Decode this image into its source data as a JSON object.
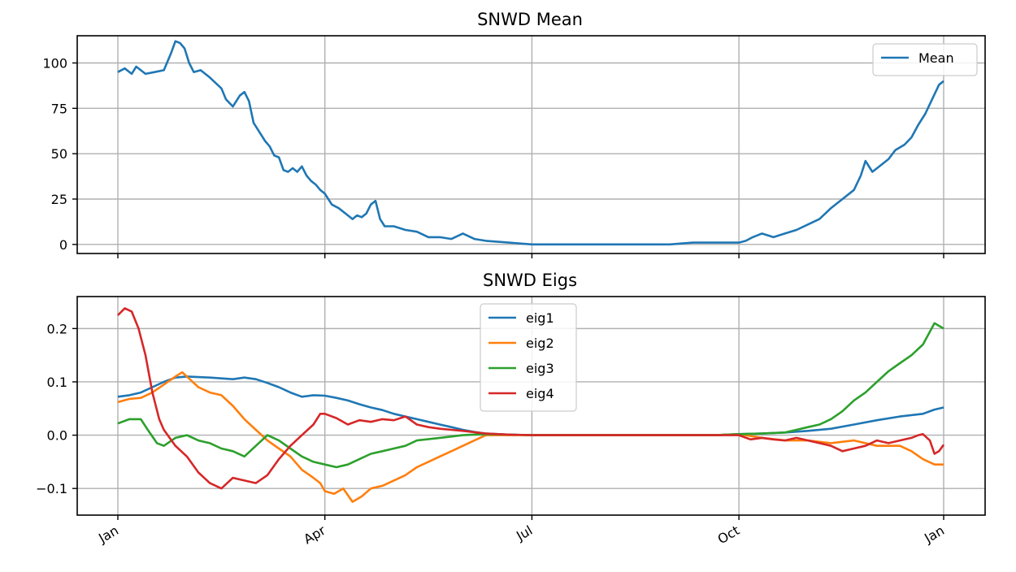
{
  "chart_data": [
    {
      "type": "line",
      "title": "SNWD Mean",
      "x_ticks": [
        "Jan",
        "Apr",
        "Jul",
        "Oct",
        "Jan"
      ],
      "x_tick_days": [
        0,
        90,
        180,
        270,
        359
      ],
      "xlim": [
        0,
        359
      ],
      "ylim": [
        -5,
        115
      ],
      "y_ticks": [
        0,
        25,
        50,
        75,
        100
      ],
      "y_tick_labels": [
        "0",
        "25",
        "50",
        "75",
        "100"
      ],
      "grid": true,
      "legend_position": "upper right",
      "series": [
        {
          "name": "Mean",
          "color": "#1f77b4",
          "x": [
            0,
            3,
            6,
            8,
            12,
            16,
            20,
            23,
            25,
            27,
            29,
            31,
            33,
            36,
            40,
            45,
            47,
            50,
            53,
            55,
            57,
            59,
            61,
            64,
            66,
            68,
            70,
            72,
            74,
            76,
            78,
            80,
            82,
            84,
            86,
            88,
            90,
            93,
            96,
            99,
            102,
            104,
            106,
            108,
            110,
            112,
            114,
            116,
            120,
            125,
            130,
            135,
            140,
            145,
            150,
            155,
            160,
            170,
            180,
            195,
            210,
            225,
            240,
            250,
            255,
            260,
            265,
            270,
            273,
            276,
            280,
            285,
            290,
            295,
            300,
            305,
            310,
            315,
            320,
            323,
            325,
            328,
            332,
            335,
            338,
            342,
            345,
            348,
            351,
            354,
            357,
            359
          ],
          "y": [
            95,
            97,
            94,
            98,
            94,
            95,
            96,
            105,
            112,
            111,
            108,
            100,
            95,
            96,
            92,
            86,
            80,
            76,
            82,
            84,
            79,
            67,
            63,
            57,
            54,
            49,
            48,
            41,
            40,
            42,
            40,
            43,
            38,
            35,
            33,
            30,
            28,
            22,
            20,
            17,
            14,
            16,
            15,
            17,
            22,
            24,
            14,
            10,
            10,
            8,
            7,
            4,
            4,
            3,
            6,
            3,
            2,
            1,
            0,
            0,
            0,
            0,
            0,
            1,
            1,
            1,
            1,
            1,
            2,
            4,
            6,
            4,
            6,
            8,
            11,
            14,
            20,
            25,
            30,
            38,
            46,
            40,
            44,
            47,
            52,
            55,
            59,
            66,
            72,
            80,
            88,
            90
          ]
        }
      ]
    },
    {
      "type": "line",
      "title": "SNWD Eigs",
      "x_ticks": [
        "Jan",
        "Apr",
        "Jul",
        "Oct",
        "Jan"
      ],
      "x_tick_days": [
        0,
        90,
        180,
        270,
        359
      ],
      "xlim": [
        0,
        359
      ],
      "ylim": [
        -0.15,
        0.26
      ],
      "y_ticks": [
        -0.1,
        0.0,
        0.1,
        0.2
      ],
      "y_tick_labels": [
        "−0.1",
        "0.0",
        "0.1",
        "0.2"
      ],
      "grid": true,
      "legend_position": "upper center",
      "series": [
        {
          "name": "eig1",
          "color": "#1f77b4",
          "x": [
            0,
            5,
            10,
            15,
            20,
            25,
            30,
            40,
            50,
            55,
            60,
            65,
            70,
            75,
            80,
            85,
            90,
            95,
            100,
            105,
            110,
            115,
            120,
            125,
            130,
            135,
            140,
            145,
            150,
            155,
            160,
            170,
            180,
            200,
            220,
            240,
            260,
            270,
            280,
            290,
            300,
            310,
            320,
            330,
            340,
            350,
            355,
            359
          ],
          "y": [
            0.072,
            0.075,
            0.08,
            0.09,
            0.1,
            0.108,
            0.11,
            0.108,
            0.105,
            0.108,
            0.105,
            0.098,
            0.09,
            0.08,
            0.072,
            0.075,
            0.074,
            0.07,
            0.065,
            0.058,
            0.052,
            0.047,
            0.04,
            0.035,
            0.03,
            0.025,
            0.02,
            0.015,
            0.01,
            0.006,
            0.003,
            0.001,
            0.0,
            0.0,
            0.0,
            0.0,
            0.0,
            0.002,
            0.003,
            0.005,
            0.008,
            0.012,
            0.02,
            0.028,
            0.035,
            0.04,
            0.048,
            0.052
          ]
        },
        {
          "name": "eig2",
          "color": "#ff7f0e",
          "x": [
            0,
            5,
            10,
            15,
            20,
            25,
            28,
            30,
            35,
            40,
            45,
            50,
            55,
            60,
            65,
            70,
            75,
            80,
            85,
            88,
            90,
            94,
            98,
            102,
            106,
            110,
            115,
            120,
            125,
            130,
            135,
            140,
            145,
            150,
            155,
            160,
            170,
            180,
            200,
            220,
            240,
            260,
            270,
            280,
            290,
            300,
            310,
            320,
            330,
            340,
            345,
            350,
            355,
            359
          ],
          "y": [
            0.062,
            0.068,
            0.07,
            0.08,
            0.095,
            0.11,
            0.118,
            0.11,
            0.09,
            0.08,
            0.075,
            0.055,
            0.03,
            0.01,
            -0.01,
            -0.025,
            -0.04,
            -0.065,
            -0.08,
            -0.09,
            -0.105,
            -0.11,
            -0.1,
            -0.125,
            -0.115,
            -0.1,
            -0.095,
            -0.085,
            -0.075,
            -0.06,
            -0.05,
            -0.04,
            -0.03,
            -0.02,
            -0.01,
            0.0,
            0.0,
            0.0,
            0.0,
            0.0,
            0.0,
            0.0,
            0.002,
            -0.005,
            -0.01,
            -0.01,
            -0.015,
            -0.01,
            -0.02,
            -0.02,
            -0.03,
            -0.045,
            -0.055,
            -0.055
          ]
        },
        {
          "name": "eig3",
          "color": "#2ca02c",
          "x": [
            0,
            5,
            10,
            13,
            17,
            20,
            25,
            30,
            35,
            40,
            45,
            50,
            55,
            60,
            65,
            70,
            75,
            80,
            85,
            90,
            95,
            100,
            105,
            110,
            115,
            120,
            125,
            130,
            140,
            150,
            160,
            170,
            180,
            200,
            220,
            240,
            260,
            270,
            280,
            290,
            295,
            300,
            305,
            310,
            315,
            320,
            325,
            330,
            335,
            340,
            345,
            350,
            355,
            359
          ],
          "y": [
            0.022,
            0.03,
            0.03,
            0.01,
            -0.015,
            -0.02,
            -0.005,
            0.0,
            -0.01,
            -0.015,
            -0.025,
            -0.03,
            -0.04,
            -0.02,
            0.0,
            -0.01,
            -0.025,
            -0.04,
            -0.05,
            -0.055,
            -0.06,
            -0.055,
            -0.045,
            -0.035,
            -0.03,
            -0.025,
            -0.02,
            -0.01,
            -0.005,
            0.0,
            0.002,
            0.001,
            0.0,
            0.0,
            0.0,
            0.0,
            0.0,
            0.002,
            0.003,
            0.005,
            0.01,
            0.015,
            0.02,
            0.03,
            0.045,
            0.065,
            0.08,
            0.1,
            0.12,
            0.135,
            0.15,
            0.17,
            0.21,
            0.2
          ]
        },
        {
          "name": "eig4",
          "color": "#d62728",
          "x": [
            0,
            3,
            6,
            9,
            12,
            15,
            18,
            20,
            25,
            30,
            35,
            40,
            45,
            50,
            55,
            60,
            65,
            70,
            75,
            80,
            85,
            88,
            90,
            95,
            100,
            105,
            110,
            115,
            120,
            125,
            130,
            135,
            140,
            145,
            150,
            160,
            170,
            180,
            200,
            220,
            240,
            260,
            270,
            275,
            280,
            285,
            290,
            295,
            300,
            305,
            310,
            315,
            320,
            325,
            330,
            335,
            340,
            345,
            348,
            350,
            353,
            355,
            357,
            359
          ],
          "y": [
            0.225,
            0.238,
            0.232,
            0.2,
            0.15,
            0.08,
            0.03,
            0.01,
            -0.02,
            -0.04,
            -0.07,
            -0.09,
            -0.1,
            -0.08,
            -0.085,
            -0.09,
            -0.075,
            -0.045,
            -0.02,
            0.0,
            0.02,
            0.04,
            0.04,
            0.032,
            0.02,
            0.028,
            0.025,
            0.03,
            0.028,
            0.035,
            0.02,
            0.015,
            0.012,
            0.01,
            0.008,
            0.003,
            0.001,
            0.0,
            0.0,
            0.0,
            0.0,
            0.0,
            0.0,
            -0.008,
            -0.005,
            -0.008,
            -0.01,
            -0.005,
            -0.01,
            -0.015,
            -0.02,
            -0.03,
            -0.025,
            -0.02,
            -0.01,
            -0.015,
            -0.01,
            -0.005,
            0.0,
            0.002,
            -0.01,
            -0.035,
            -0.03,
            -0.018
          ]
        }
      ]
    }
  ]
}
